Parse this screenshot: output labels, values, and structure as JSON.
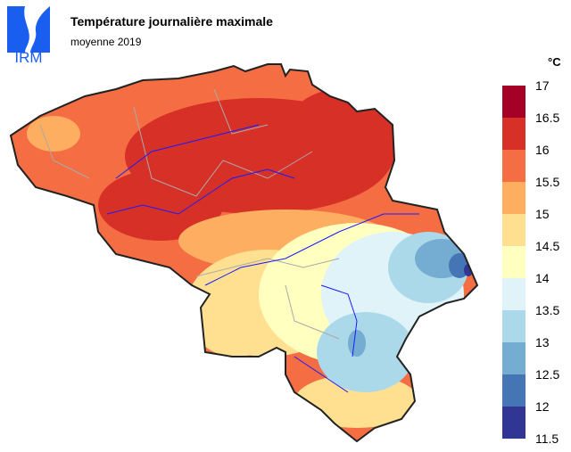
{
  "logo_text": "IRM",
  "title": "Température journalière maximale",
  "subtitle": "moyenne 2019",
  "legend": {
    "unit": "°C",
    "ticks": [
      "17",
      "16.5",
      "16",
      "15.5",
      "15",
      "14.5",
      "14",
      "13.5",
      "13",
      "12.5",
      "12",
      "11.5"
    ],
    "colors": [
      "#a50026",
      "#d73027",
      "#f46d43",
      "#fdae61",
      "#fee090",
      "#ffffbf",
      "#e0f3f8",
      "#abd9e9",
      "#74add1",
      "#4575b4",
      "#313695"
    ]
  }
}
